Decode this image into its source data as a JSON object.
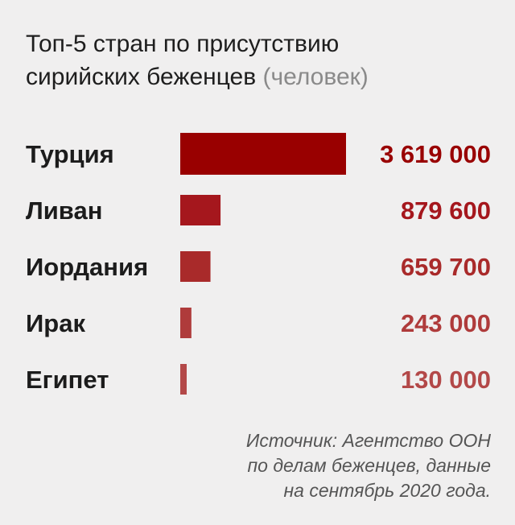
{
  "title": {
    "line1": "Топ-5 стран по присутствию",
    "line2": "сирийских беженцев",
    "unit": "(человек)"
  },
  "chart_data": {
    "type": "bar",
    "orientation": "horizontal",
    "categories": [
      "Турция",
      "Ливан",
      "Иордания",
      "Ирак",
      "Египет"
    ],
    "values": [
      3619000,
      879600,
      659700,
      243000,
      130000
    ],
    "value_labels": [
      "3 619 000",
      "879 600",
      "659 700",
      "243 000",
      "130 000"
    ],
    "colors": [
      "#990000",
      "#a5171d",
      "#a92a2a",
      "#af3b3b",
      "#b34848"
    ],
    "xlim": [
      0,
      3619000
    ],
    "grid": false,
    "legend": "none"
  },
  "source": {
    "line1": "Источник: Агентство ООН",
    "line2": "по делам беженцев, данные",
    "line3": "на сентябрь 2020 года."
  }
}
